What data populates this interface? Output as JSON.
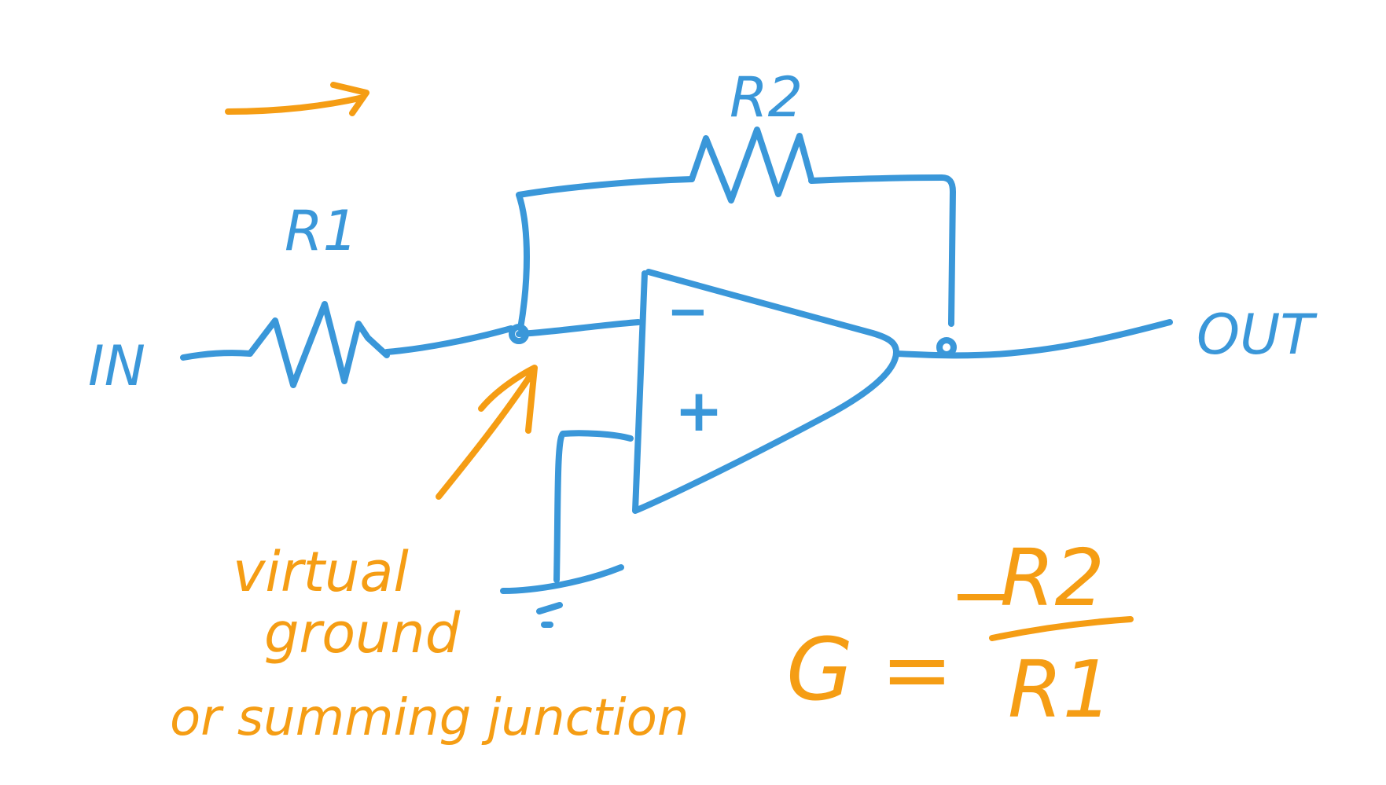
{
  "colors": {
    "circuit": "#3a97d9",
    "annotation": "#f59d14",
    "background": "#ffffff"
  },
  "circuit": {
    "r1_label": "R1",
    "r2_label": "R2",
    "input_label": "IN",
    "output_label": "OUT",
    "inverting_sign": "−",
    "noninverting_sign": "+"
  },
  "annotations": {
    "node_note_line1": "virtual",
    "node_note_line2": "ground",
    "node_note_line3": "or summing junction",
    "gain_lhs": "G =",
    "gain_sign": "−",
    "gain_numerator": "R2",
    "gain_denominator": "R1"
  }
}
